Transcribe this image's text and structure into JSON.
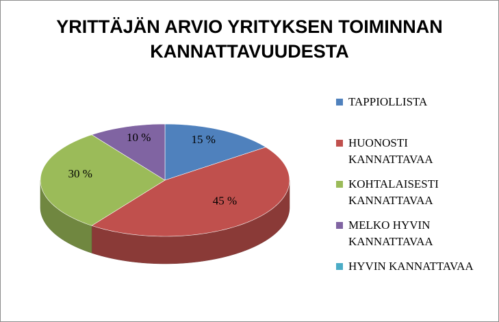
{
  "chart_data": {
    "type": "pie",
    "title": "YRITTÄJÄN ARVIO YRITYKSEN TOIMINNAN KANNATTAVUUDESTA",
    "categories": [
      "TAPPIOLLISTA",
      "HUONOSTI KANNATTAVAA",
      "KOHTALAISESTI KANNATTAVAA",
      "MELKO HYVIN KANNATTAVAA",
      "HYVIN KANNATTAVAA"
    ],
    "values": [
      15,
      45,
      30,
      10,
      0
    ],
    "value_labels": [
      "15 %",
      "45 %",
      "30 %",
      "10 %",
      null
    ],
    "colors": [
      "#4f81bd",
      "#c0504d",
      "#9bbb59",
      "#8064a2",
      "#4bacc6"
    ],
    "legend": "right"
  }
}
